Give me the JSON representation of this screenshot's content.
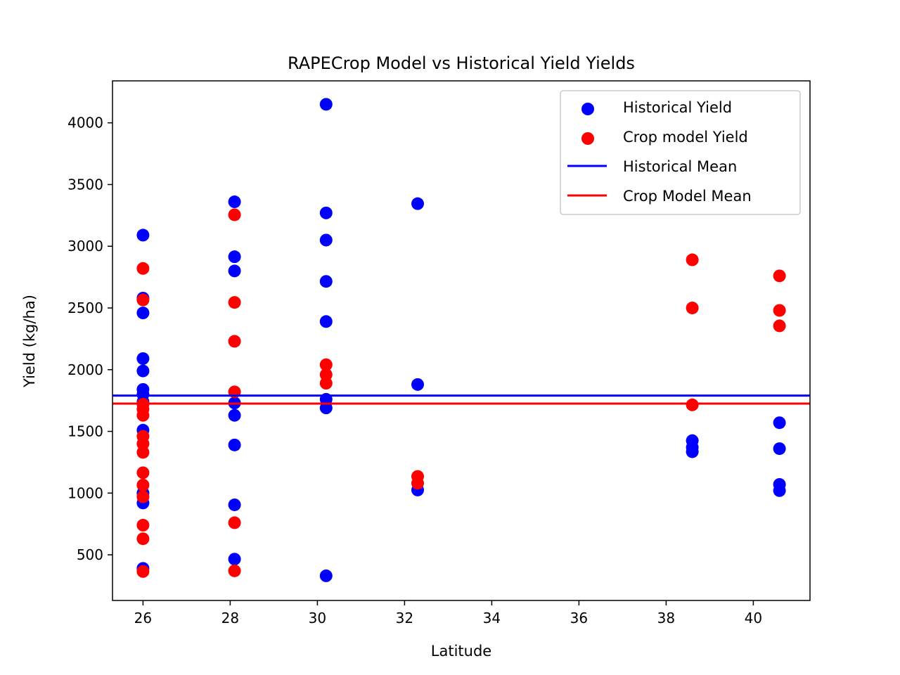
{
  "chart_data": {
    "type": "scatter",
    "title": "RAPECrop Model vs Historical Yield Yields",
    "xlabel": "Latitude",
    "ylabel": "Yield (kg/ha)",
    "xlim": [
      25.3,
      41.3
    ],
    "ylim": [
      130,
      4340
    ],
    "xticks": [
      26,
      28,
      30,
      32,
      34,
      36,
      38,
      40
    ],
    "yticks": [
      500,
      1000,
      1500,
      2000,
      2500,
      3000,
      3500,
      4000
    ],
    "grid": false,
    "legend_position": "top-right",
    "series": [
      {
        "name": "Historical Yield",
        "kind": "scatter",
        "color": "#0000ff",
        "points": [
          [
            26.0,
            3090
          ],
          [
            26.0,
            2580
          ],
          [
            26.0,
            2460
          ],
          [
            26.0,
            2090
          ],
          [
            26.0,
            1990
          ],
          [
            26.0,
            1840
          ],
          [
            26.0,
            1800
          ],
          [
            26.0,
            1740
          ],
          [
            26.0,
            1510
          ],
          [
            26.0,
            1000
          ],
          [
            26.0,
            920
          ],
          [
            26.0,
            390
          ],
          [
            28.1,
            3360
          ],
          [
            28.1,
            2915
          ],
          [
            28.1,
            2800
          ],
          [
            28.1,
            1730
          ],
          [
            28.1,
            1630
          ],
          [
            28.1,
            1390
          ],
          [
            28.1,
            905
          ],
          [
            28.1,
            465
          ],
          [
            30.2,
            4150
          ],
          [
            30.2,
            3270
          ],
          [
            30.2,
            3050
          ],
          [
            30.2,
            2715
          ],
          [
            30.2,
            2390
          ],
          [
            30.2,
            1760
          ],
          [
            30.2,
            1690
          ],
          [
            30.2,
            330
          ],
          [
            32.3,
            3345
          ],
          [
            32.3,
            1880
          ],
          [
            32.3,
            1025
          ],
          [
            38.6,
            1425
          ],
          [
            38.6,
            1370
          ],
          [
            38.6,
            1335
          ],
          [
            40.6,
            1570
          ],
          [
            40.6,
            1360
          ],
          [
            40.6,
            1070
          ],
          [
            40.6,
            1020
          ]
        ]
      },
      {
        "name": "Crop model Yield",
        "kind": "scatter",
        "color": "#ff0000",
        "points": [
          [
            26.0,
            2820
          ],
          [
            26.0,
            2565
          ],
          [
            26.0,
            1720
          ],
          [
            26.0,
            1680
          ],
          [
            26.0,
            1630
          ],
          [
            26.0,
            1460
          ],
          [
            26.0,
            1400
          ],
          [
            26.0,
            1330
          ],
          [
            26.0,
            1165
          ],
          [
            26.0,
            1065
          ],
          [
            26.0,
            970
          ],
          [
            26.0,
            740
          ],
          [
            26.0,
            630
          ],
          [
            26.0,
            365
          ],
          [
            28.1,
            3255
          ],
          [
            28.1,
            2545
          ],
          [
            28.1,
            2230
          ],
          [
            28.1,
            1820
          ],
          [
            28.1,
            760
          ],
          [
            28.1,
            370
          ],
          [
            30.2,
            2040
          ],
          [
            30.2,
            1960
          ],
          [
            30.2,
            1890
          ],
          [
            32.3,
            1135
          ],
          [
            32.3,
            1080
          ],
          [
            38.6,
            2890
          ],
          [
            38.6,
            2500
          ],
          [
            38.6,
            1715
          ],
          [
            40.6,
            2760
          ],
          [
            40.6,
            2480
          ],
          [
            40.6,
            2355
          ]
        ]
      },
      {
        "name": "Historical Mean",
        "kind": "hline",
        "color": "#0000ff",
        "value": 1790
      },
      {
        "name": "Crop Model Mean",
        "kind": "hline",
        "color": "#ff0000",
        "value": 1725
      }
    ]
  }
}
